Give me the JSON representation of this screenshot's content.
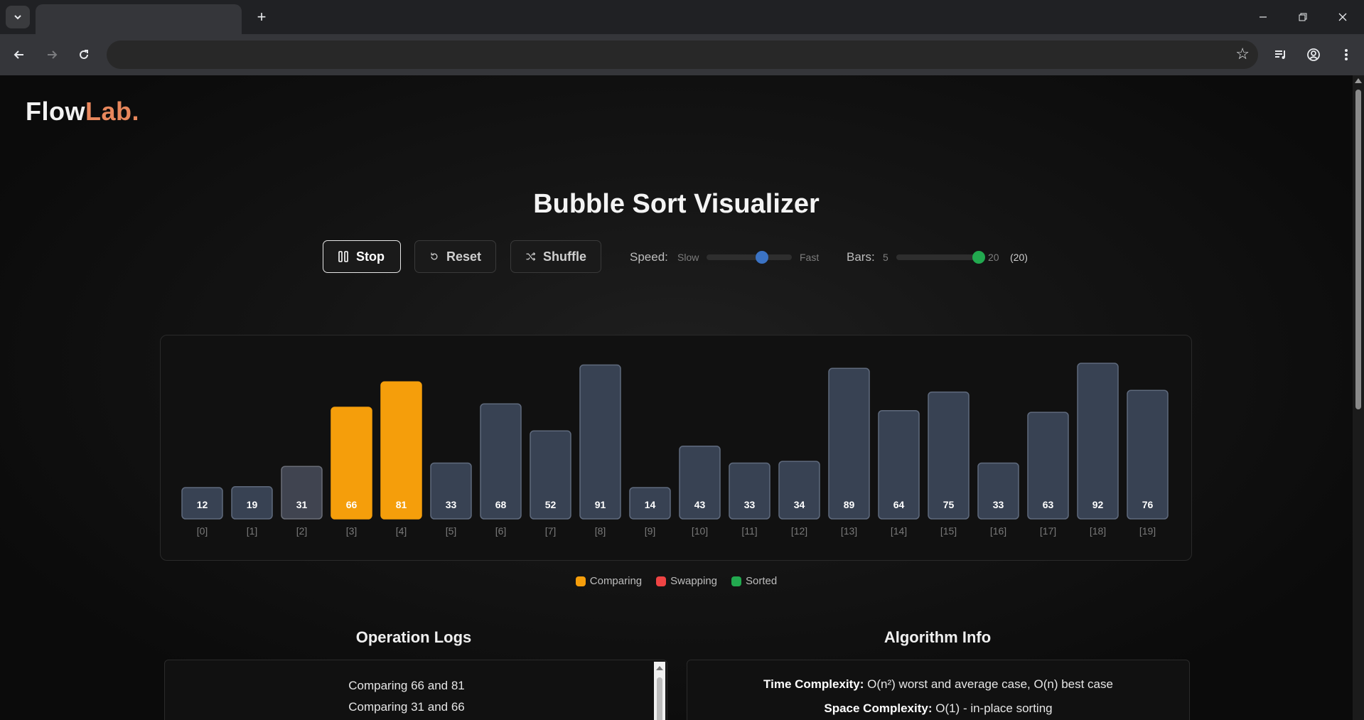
{
  "browser": {
    "new_tab_label": "+",
    "icons": [
      "tab-search-icon",
      "back-icon",
      "forward-icon",
      "reload-icon",
      "bookmark-star-icon",
      "media-icon",
      "profile-icon",
      "menu-dots-icon",
      "minimize-icon",
      "restore-icon",
      "close-icon"
    ]
  },
  "logo": {
    "part1": "Flow",
    "part2": "Lab."
  },
  "title": "Bubble Sort Visualizer",
  "controls": {
    "stop_label": "Stop",
    "reset_label": "Reset",
    "shuffle_label": "Shuffle",
    "speed_label": "Speed:",
    "speed_min": "Slow",
    "speed_max": "Fast",
    "speed_value": 0.65,
    "bars_label": "Bars:",
    "bars_min": "5",
    "bars_max": "20",
    "bars_current": "(20)",
    "bars_value": 20
  },
  "colors": {
    "bar_default": "#384253",
    "bar_stroke": "#5f6a7d",
    "bar_prev": "#404450",
    "comparing": "#f59e0b",
    "swapping": "#ef4444",
    "sorted": "#22a94f",
    "speed_thumb": "#3b73c4"
  },
  "chart_data": {
    "type": "bar",
    "categories": [
      "[0]",
      "[1]",
      "[2]",
      "[3]",
      "[4]",
      "[5]",
      "[6]",
      "[7]",
      "[8]",
      "[9]",
      "[10]",
      "[11]",
      "[12]",
      "[13]",
      "[14]",
      "[15]",
      "[16]",
      "[17]",
      "[18]",
      "[19]"
    ],
    "values": [
      12,
      19,
      31,
      66,
      81,
      33,
      68,
      52,
      91,
      14,
      43,
      33,
      34,
      89,
      64,
      75,
      33,
      63,
      92,
      76
    ],
    "states": [
      "default",
      "default",
      "previous",
      "comparing",
      "comparing",
      "default",
      "default",
      "default",
      "default",
      "default",
      "default",
      "default",
      "default",
      "default",
      "default",
      "default",
      "default",
      "default",
      "default",
      "default"
    ],
    "legend": [
      "Comparing",
      "Swapping",
      "Sorted"
    ]
  },
  "logs": {
    "title": "Operation Logs",
    "lines": [
      "Comparing 66 and 81",
      "Comparing 31 and 66"
    ]
  },
  "info": {
    "title": "Algorithm Info",
    "time_label": "Time Complexity:",
    "time_value": "O(n²) worst and average case, O(n) best case",
    "space_label": "Space Complexity:",
    "space_value": "O(1) - in-place sorting"
  }
}
